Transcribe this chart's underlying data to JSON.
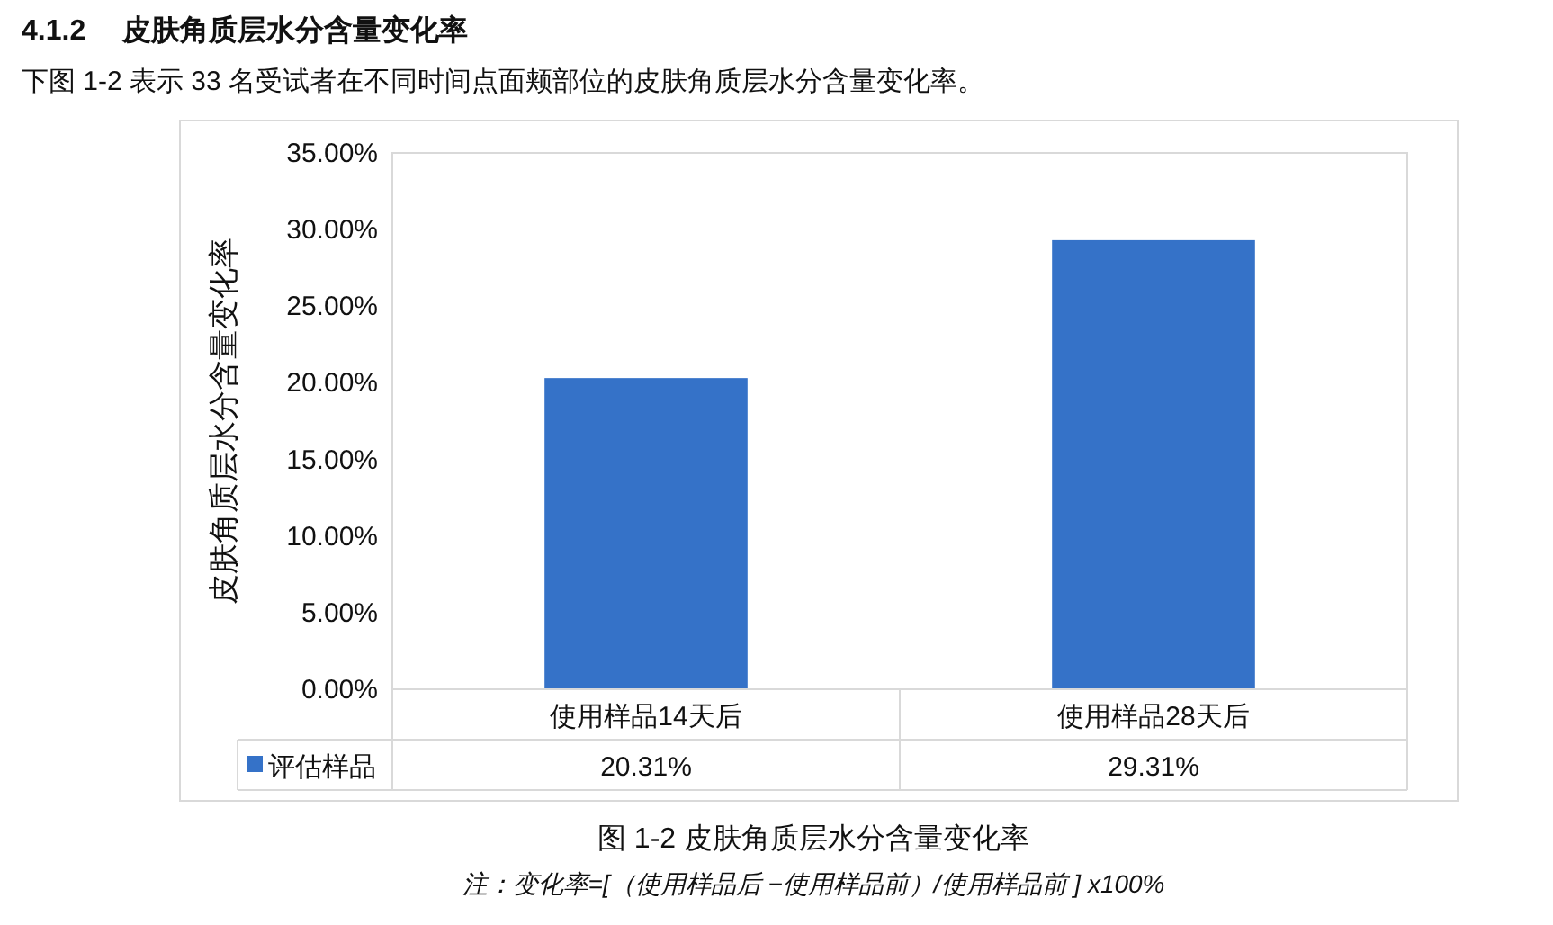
{
  "chart_data": {
    "type": "bar",
    "title": "4.1.2　 皮肤角质层水分含量变化率",
    "subtitle": "下图 1-2 表示 33 名受试者在不同时间点面颊部位的皮肤角质层水分含量变化率。",
    "ylabel": "皮肤角质层水分含量变化率",
    "categories": [
      "使用样品14天后",
      "使用样品28天后"
    ],
    "series": [
      {
        "name": "评估样品",
        "color": "#3572c8",
        "values": [
          20.31,
          29.31
        ],
        "value_labels": [
          "20.31%",
          "29.31%"
        ]
      }
    ],
    "ylim": [
      0,
      35
    ],
    "yticks": [
      {
        "value": 0,
        "label": "0.00%"
      },
      {
        "value": 5,
        "label": "5.00%"
      },
      {
        "value": 10,
        "label": "10.00%"
      },
      {
        "value": 15,
        "label": "15.00%"
      },
      {
        "value": 20,
        "label": "20.00%"
      },
      {
        "value": 25,
        "label": "25.00%"
      },
      {
        "value": 30,
        "label": "30.00%"
      },
      {
        "value": 35,
        "label": "35.00%"
      }
    ],
    "legend": "bottom left",
    "annotations": [
      "图 1-2 皮肤角质层水分含量变化率",
      "注：变化率=[（使用样品后 −使用样品前）/使用样品前 ] x100%"
    ]
  }
}
